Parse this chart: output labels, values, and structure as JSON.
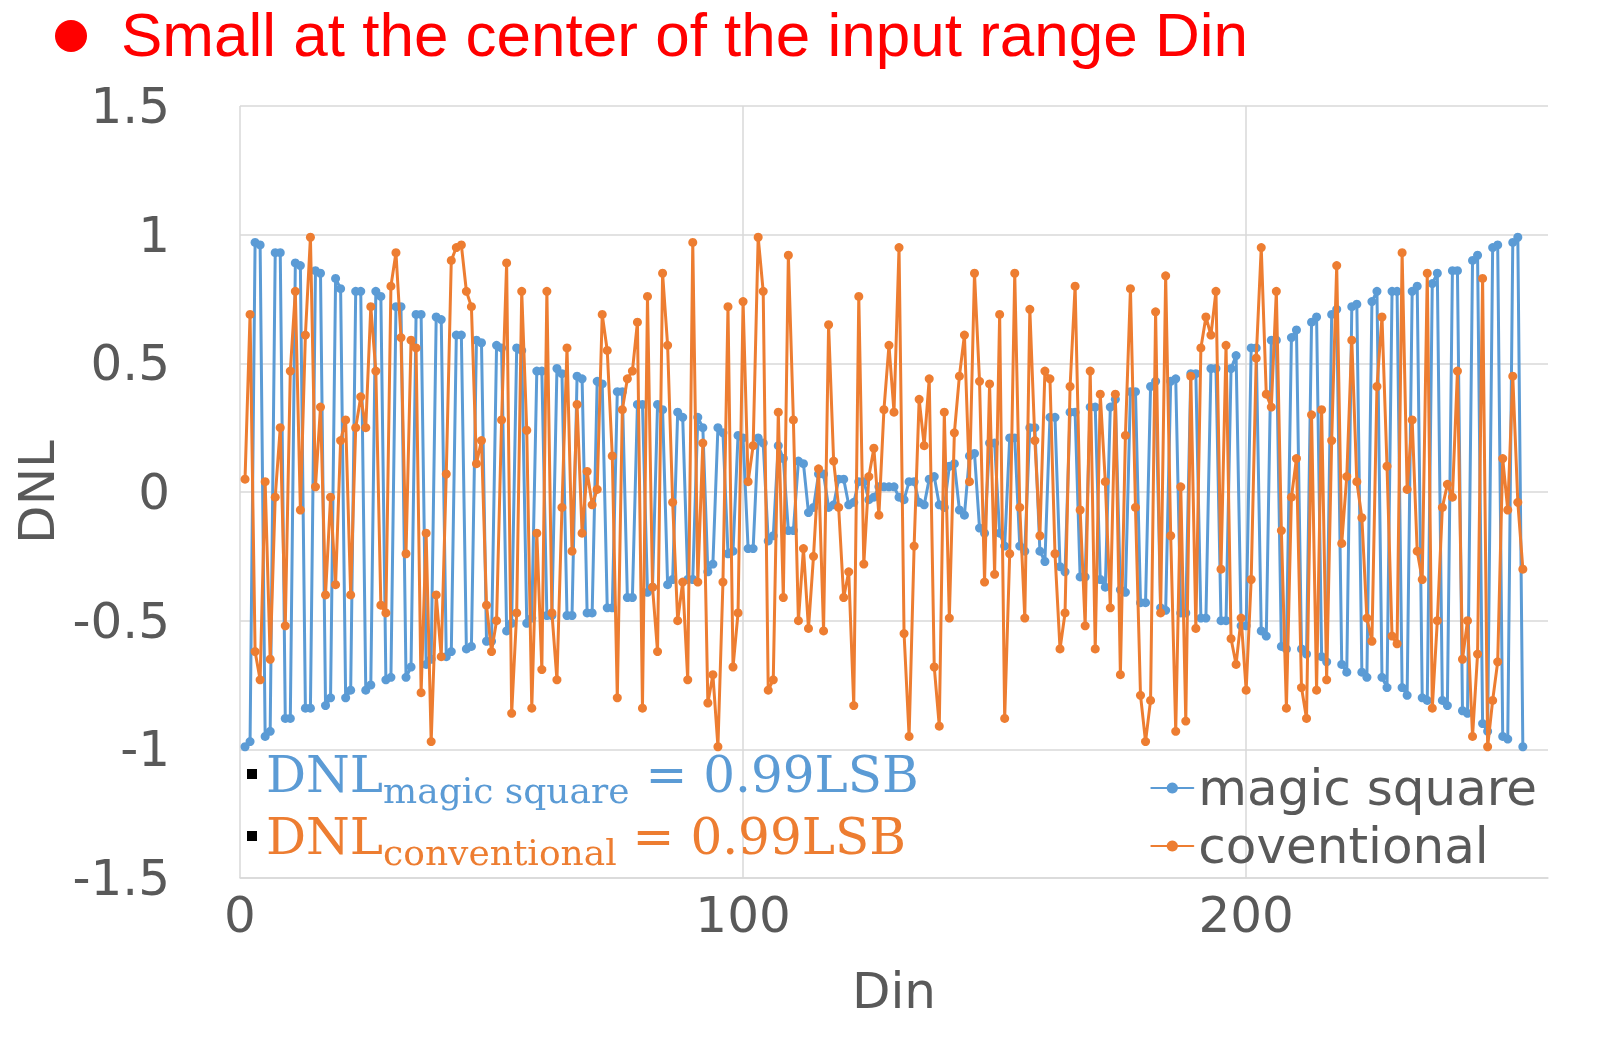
{
  "chart_data": {
    "type": "line",
    "title": "Small at the center of the input range Din",
    "xlabel": "Din",
    "ylabel": "DNL",
    "annotations": [
      "DNL$_{magic square}$ = 0.99LSB",
      "DNL$_{conventional}$ = 0.99LSB"
    ],
    "x": [
      1,
      2,
      3,
      4,
      5,
      6,
      7,
      8,
      9,
      10,
      11,
      12,
      13,
      14,
      15,
      16,
      17,
      18,
      19,
      20,
      21,
      22,
      23,
      24,
      25,
      26,
      27,
      28,
      29,
      30,
      31,
      32,
      33,
      34,
      35,
      36,
      37,
      38,
      39,
      40,
      41,
      42,
      43,
      44,
      45,
      46,
      47,
      48,
      49,
      50,
      51,
      52,
      53,
      54,
      55,
      56,
      57,
      58,
      59,
      60,
      61,
      62,
      63,
      64,
      65,
      66,
      67,
      68,
      69,
      70,
      71,
      72,
      73,
      74,
      75,
      76,
      77,
      78,
      79,
      80,
      81,
      82,
      83,
      84,
      85,
      86,
      87,
      88,
      89,
      90,
      91,
      92,
      93,
      94,
      95,
      96,
      97,
      98,
      99,
      100,
      101,
      102,
      103,
      104,
      105,
      106,
      107,
      108,
      109,
      110,
      111,
      112,
      113,
      114,
      115,
      116,
      117,
      118,
      119,
      120,
      121,
      122,
      123,
      124,
      125,
      126,
      127,
      128,
      129,
      130,
      131,
      132,
      133,
      134,
      135,
      136,
      137,
      138,
      139,
      140,
      141,
      142,
      143,
      144,
      145,
      146,
      147,
      148,
      149,
      150,
      151,
      152,
      153,
      154,
      155,
      156,
      157,
      158,
      159,
      160,
      161,
      162,
      163,
      164,
      165,
      166,
      167,
      168,
      169,
      170,
      171,
      172,
      173,
      174,
      175,
      176,
      177,
      178,
      179,
      180,
      181,
      182,
      183,
      184,
      185,
      186,
      187,
      188,
      189,
      190,
      191,
      192,
      193,
      194,
      195,
      196,
      197,
      198,
      199,
      200,
      201,
      202,
      203,
      204,
      205,
      206,
      207,
      208,
      209,
      210,
      211,
      212,
      213,
      214,
      215,
      216,
      217,
      218,
      219,
      220,
      221,
      222,
      223,
      224,
      225,
      226,
      227,
      228,
      229,
      230,
      231,
      232,
      233,
      234,
      235,
      236,
      237,
      238,
      239,
      240,
      241,
      242,
      243,
      244,
      245,
      246,
      247,
      248,
      249,
      250,
      251,
      252,
      253,
      254,
      255
    ],
    "xlim": [
      0,
      260
    ],
    "xticks": [
      0,
      100,
      200
    ],
    "ylim": [
      -1.5,
      1.5
    ],
    "yticks": [
      -1.5,
      -1,
      -0.5,
      0,
      0.5,
      1,
      1.5
    ],
    "grid": true,
    "legend": "bottom right",
    "marker": "circle",
    "line_style": "solid",
    "series": [
      {
        "name": "magic square",
        "color": "#5b9bd5",
        "values": [
          -0.99,
          -0.97,
          0.97,
          0.96,
          -0.95,
          -0.93,
          0.93,
          0.93,
          -0.88,
          -0.88,
          0.89,
          0.88,
          -0.84,
          -0.84,
          0.86,
          0.85,
          -0.83,
          -0.8,
          0.83,
          0.79,
          -0.8,
          -0.77,
          0.78,
          0.78,
          -0.77,
          -0.75,
          0.78,
          0.76,
          -0.73,
          -0.72,
          0.72,
          0.72,
          -0.72,
          -0.68,
          0.69,
          0.69,
          -0.67,
          -0.65,
          0.68,
          0.67,
          -0.64,
          -0.62,
          0.61,
          0.61,
          -0.61,
          -0.6,
          0.59,
          0.58,
          -0.58,
          -0.58,
          0.57,
          0.56,
          -0.54,
          -0.51,
          0.56,
          0.55,
          -0.51,
          -0.49,
          0.47,
          0.47,
          -0.48,
          -0.48,
          0.48,
          0.46,
          -0.48,
          -0.48,
          0.45,
          0.44,
          -0.47,
          -0.47,
          0.43,
          0.42,
          -0.45,
          -0.45,
          0.39,
          0.39,
          -0.41,
          -0.41,
          0.34,
          0.34,
          -0.39,
          -0.37,
          0.34,
          0.32,
          -0.36,
          -0.34,
          0.31,
          0.29,
          -0.34,
          -0.34,
          0.29,
          0.25,
          -0.31,
          -0.28,
          0.25,
          0.23,
          -0.24,
          -0.23,
          0.22,
          0.21,
          -0.22,
          -0.22,
          0.21,
          0.19,
          -0.19,
          -0.17,
          0.18,
          0.13,
          -0.15,
          -0.15,
          0.12,
          0.11,
          -0.08,
          -0.06,
          0.07,
          0.07,
          -0.06,
          -0.05,
          0.05,
          0.05,
          -0.05,
          -0.04,
          0.04,
          0.04,
          -0.03,
          -0.02,
          0.02,
          0.02,
          0.02,
          0.02,
          -0.02,
          -0.03,
          0.04,
          0.04,
          -0.04,
          -0.05,
          0.05,
          0.06,
          -0.05,
          -0.06,
          0.1,
          0.11,
          -0.07,
          -0.09,
          0.14,
          0.15,
          -0.14,
          -0.16,
          0.19,
          0.19,
          -0.16,
          -0.21,
          0.21,
          0.21,
          -0.21,
          -0.23,
          0.25,
          0.25,
          -0.23,
          -0.27,
          0.29,
          0.29,
          -0.29,
          -0.31,
          0.31,
          0.31,
          -0.33,
          -0.33,
          0.33,
          0.33,
          -0.34,
          -0.37,
          0.33,
          0.36,
          -0.38,
          -0.39,
          0.39,
          0.39,
          -0.43,
          -0.43,
          0.41,
          0.43,
          -0.45,
          -0.46,
          0.43,
          0.44,
          -0.47,
          -0.47,
          0.46,
          0.46,
          -0.49,
          -0.49,
          0.48,
          0.48,
          -0.5,
          -0.5,
          0.48,
          0.53,
          -0.52,
          -0.52,
          0.56,
          0.56,
          -0.54,
          -0.56,
          0.59,
          0.59,
          -0.6,
          -0.61,
          0.6,
          0.63,
          -0.61,
          -0.63,
          0.66,
          0.68,
          -0.64,
          -0.66,
          0.69,
          0.71,
          -0.67,
          -0.7,
          0.72,
          0.73,
          -0.7,
          -0.72,
          0.74,
          0.78,
          -0.72,
          -0.76,
          0.78,
          0.78,
          -0.76,
          -0.79,
          0.78,
          0.8,
          -0.8,
          -0.81,
          0.81,
          0.85,
          -0.81,
          -0.83,
          0.86,
          0.86,
          -0.85,
          -0.86,
          0.9,
          0.92,
          -0.9,
          -0.93,
          0.95,
          0.96,
          -0.95,
          -0.96,
          0.97,
          0.99,
          -0.99
        ]
      },
      {
        "name": "coventional",
        "color": "#ed7d31",
        "values": [
          0.05,
          0.69,
          -0.62,
          -0.73,
          0.04,
          -0.65,
          -0.02,
          0.25,
          -0.52,
          0.47,
          0.78,
          -0.07,
          0.61,
          0.99,
          0.02,
          0.33,
          -0.4,
          -0.02,
          -0.36,
          0.2,
          0.28,
          -0.4,
          0.25,
          0.37,
          0.25,
          0.72,
          0.47,
          -0.44,
          -0.47,
          0.8,
          0.93,
          0.6,
          -0.24,
          0.59,
          0.56,
          -0.78,
          -0.16,
          -0.97,
          -0.4,
          -0.64,
          0.07,
          0.9,
          0.95,
          0.96,
          0.78,
          0.72,
          0.11,
          0.2,
          -0.44,
          -0.62,
          -0.5,
          0.28,
          0.89,
          -0.86,
          -0.47,
          0.78,
          0.24,
          -0.84,
          -0.16,
          -0.69,
          0.78,
          -0.47,
          -0.73,
          -0.06,
          0.56,
          -0.23,
          0.34,
          -0.16,
          0.08,
          -0.05,
          0.01,
          0.69,
          0.55,
          0.14,
          -0.8,
          0.32,
          0.44,
          0.47,
          0.66,
          -0.84,
          0.76,
          -0.37,
          -0.62,
          0.85,
          0.57,
          -0.04,
          -0.5,
          -0.35,
          -0.73,
          0.97,
          -0.35,
          0.19,
          -0.82,
          -0.71,
          -0.99,
          -0.35,
          0.72,
          -0.68,
          -0.47,
          0.74,
          0.04,
          0.18,
          0.99,
          0.78,
          -0.77,
          -0.73,
          0.31,
          -0.41,
          0.92,
          0.28,
          -0.5,
          -0.22,
          -0.53,
          -0.25,
          0.09,
          -0.54,
          0.65,
          0.12,
          -0.06,
          -0.41,
          -0.31,
          -0.83,
          0.76,
          -0.28,
          0.06,
          0.17,
          -0.09,
          0.32,
          0.57,
          0.31,
          0.95,
          -0.55,
          -0.95,
          -0.21,
          0.36,
          0.18,
          0.44,
          -0.68,
          -0.91,
          0.31,
          -0.49,
          0.23,
          0.45,
          0.61,
          0.04,
          0.85,
          0.43,
          -0.35,
          0.42,
          -0.32,
          0.69,
          -0.88,
          -0.24,
          0.85,
          -0.06,
          -0.49,
          0.71,
          0.2,
          -0.17,
          0.47,
          0.44,
          -0.24,
          -0.61,
          -0.47,
          0.41,
          0.8,
          -0.07,
          -0.52,
          0.47,
          -0.61,
          0.38,
          0.04,
          -0.45,
          0.38,
          -0.71,
          0.22,
          0.79,
          -0.06,
          -0.79,
          -0.97,
          -0.81,
          0.7,
          -0.47,
          0.84,
          -0.17,
          -0.93,
          0.02,
          -0.89,
          0.45,
          -0.53,
          0.56,
          0.68,
          0.61,
          0.78,
          -0.3,
          0.57,
          -0.57,
          -0.67,
          -0.49,
          -0.77,
          -0.34,
          0.52,
          0.95,
          0.38,
          0.33,
          0.78,
          -0.15,
          -0.84,
          -0.02,
          0.13,
          -0.76,
          -0.88,
          0.3,
          -0.77,
          0.32,
          -0.73,
          0.2,
          0.88,
          -0.2,
          0.06,
          0.59,
          0.04,
          -0.1,
          -0.49,
          -0.58,
          0.41,
          0.68,
          0.1,
          -0.56,
          -0.59,
          0.93,
          0.01,
          0.28,
          -0.23,
          -0.34,
          0.85,
          -0.84,
          -0.5,
          -0.06,
          0.03,
          -0.02,
          0.47,
          -0.65,
          -0.5,
          -0.95,
          -0.63,
          0.83,
          -0.99,
          -0.81,
          -0.66,
          0.13,
          -0.07,
          0.45,
          -0.04,
          -0.3
        ]
      }
    ]
  }
}
